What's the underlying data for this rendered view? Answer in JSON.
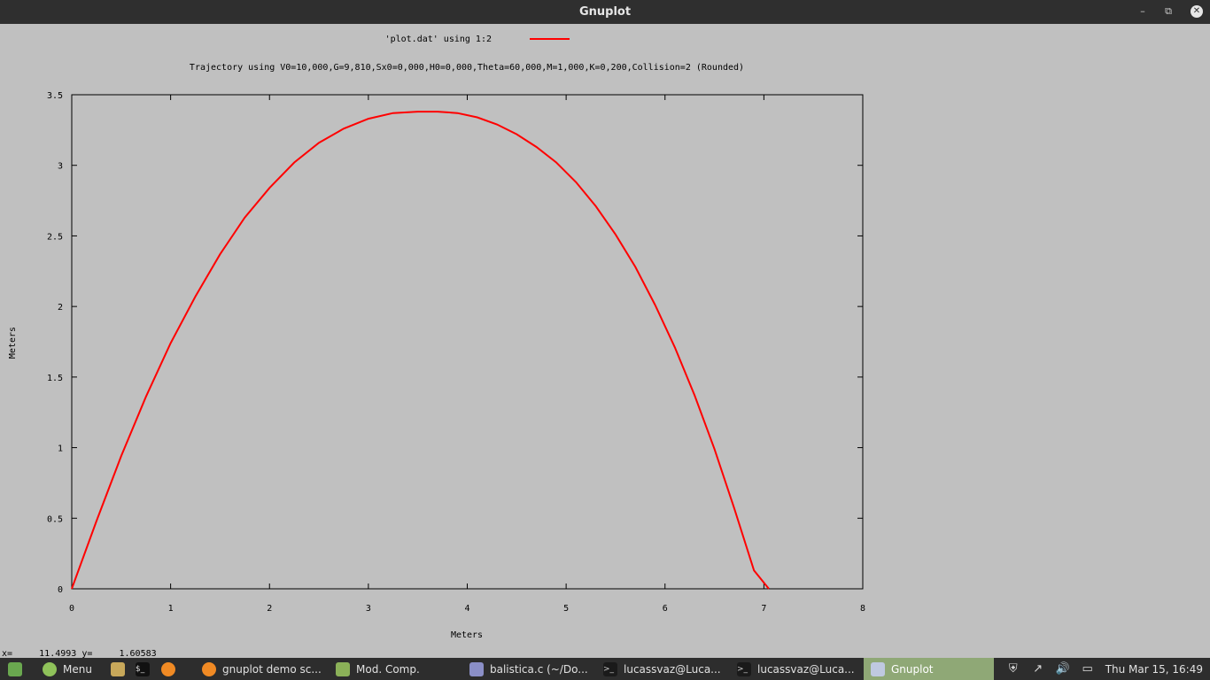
{
  "window": {
    "title": "Gnuplot"
  },
  "legend": {
    "label": "'plot.dat' using 1:2",
    "color": "#ff0000"
  },
  "chart_data": {
    "type": "line",
    "title": "Trajectory using V0=10,000,G=9,810,Sx0=0,000,H0=0,000,Theta=60,000,M=1,000,K=0,200,Collision=2 (Rounded)",
    "xlabel": "Meters",
    "ylabel": "Meters",
    "xlim": [
      0,
      8
    ],
    "ylim": [
      0,
      3.5
    ],
    "xticks": [
      "0",
      "1",
      "2",
      "3",
      "4",
      "5",
      "6",
      "7",
      "8"
    ],
    "yticks": [
      "0",
      "0.5",
      "1",
      "1.5",
      "2",
      "2.5",
      "3",
      "3.5"
    ],
    "series": [
      {
        "name": "'plot.dat' using 1:2",
        "color": "#ff0000",
        "x": [
          0,
          0.25,
          0.5,
          0.75,
          1.0,
          1.25,
          1.5,
          1.75,
          2.0,
          2.25,
          2.5,
          2.75,
          3.0,
          3.25,
          3.5,
          3.7,
          3.9,
          4.1,
          4.3,
          4.5,
          4.7,
          4.9,
          5.1,
          5.3,
          5.5,
          5.7,
          5.9,
          6.1,
          6.3,
          6.5,
          6.7,
          6.9,
          7.05
        ],
        "y": [
          0,
          0.48,
          0.94,
          1.36,
          1.74,
          2.07,
          2.37,
          2.63,
          2.84,
          3.02,
          3.16,
          3.26,
          3.33,
          3.37,
          3.38,
          3.38,
          3.37,
          3.34,
          3.29,
          3.22,
          3.13,
          3.02,
          2.88,
          2.71,
          2.51,
          2.28,
          2.01,
          1.71,
          1.37,
          0.99,
          0.57,
          0.13,
          0
        ]
      }
    ]
  },
  "status": {
    "x_label": "x=",
    "x_value": "11.4993",
    "y_label": "y=",
    "y_value": "1.60583"
  },
  "taskbar": {
    "menu_label": "Menu",
    "items": [
      {
        "label": "gnuplot demo sc...",
        "icon_color": "#f08a24"
      },
      {
        "label": "Mod. Comp.",
        "icon_color": "#8bb158"
      },
      {
        "label": "balistica.c (~/Do...",
        "icon_color": "#8b8fc7"
      },
      {
        "label": "lucassvaz@Luca...",
        "icon_color": "#1a1a1a"
      },
      {
        "label": "lucassvaz@Luca...",
        "icon_color": "#1a1a1a"
      },
      {
        "label": "Gnuplot",
        "icon_color": "#bfc9e0"
      }
    ],
    "clock": "Thu Mar 15, 16:49"
  }
}
